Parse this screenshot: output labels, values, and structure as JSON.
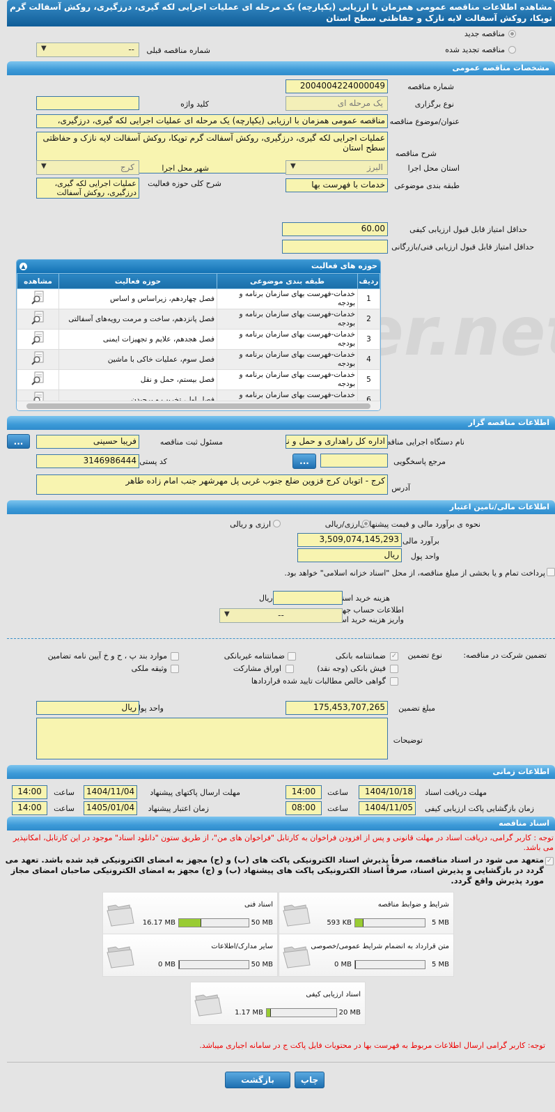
{
  "title": "مشاهده اطلاعات مناقصه عمومی همزمان با ارزیابی (یکپارچه) یک مرحله ای عملیات اجرایی لکه گیری، درزگیری، روکش آسفالت گرم توپکا، روکش آسفالت لایه نازک و حفاظتی سطح استان",
  "watermark": "AriaTender.net",
  "top": {
    "new_tender": "مناقصه جدید",
    "renewed_tender": "مناقصه تجدید شده",
    "prev_number_label": "شماره مناقصه قبلی",
    "prev_number_value": "--"
  },
  "general": {
    "header": "مشخصات مناقصه عمومی",
    "number_label": "شماره مناقصه",
    "number": "2004004224000049",
    "type_label": "نوع برگزاری",
    "type": "یک مرحله ای",
    "keyword_label": "کلید واژه",
    "keyword": "",
    "subject_label": "عنوان/موضوع مناقصه",
    "subject": "مناقصه عمومی همزمان با ارزیابی (یکپارچه) یک مرحله ای عملیات اجرایی لکه گیری، درزگیری،",
    "desc_label": "شرح مناقصه",
    "desc": "عملیات اجرایی لکه گیری، درزگیری، روکش آسفالت گرم توپکا، روکش آسفالت لایه نازک و حفاظتی سطح استان",
    "province_label": "استان محل اجرا",
    "province": "البرز",
    "city_label": "شهر محل اجرا",
    "city": "کرج",
    "category_label": "طبقه بندی موضوعی",
    "category": "خدمات با فهرست بها",
    "activity_label": "شرح کلی حوزه فعالیت",
    "activity": "عملیات اجرایی لکه گیری، درزگیری، روکش آسفالت",
    "min_quality_label": "حداقل امتیاز قابل قبول ارزیابی کیفی",
    "min_quality": "60.00",
    "min_tech_label": "حداقل امتیاز قابل قبول ارزیابی فنی/بازرگانی",
    "min_tech": ""
  },
  "activities": {
    "header": "حوزه های فعالیت",
    "columns": [
      "ردیف",
      "طبقه بندی موضوعی",
      "حوزه فعالیت",
      "مشاهده"
    ],
    "rows": [
      {
        "n": "1",
        "cat": "خدمات-فهرست بهای سازمان برنامه و بودجه",
        "field": "فصل چهاردهم، زیراساس و اساس"
      },
      {
        "n": "2",
        "cat": "خدمات-فهرست بهای سازمان برنامه و بودجه",
        "field": "فصل پانزدهم، ساخت و مرمت رویه‌های آسفالتی"
      },
      {
        "n": "3",
        "cat": "خدمات-فهرست بهای سازمان برنامه و بودجه",
        "field": "فصل هجدهم، علایم و تجهیزات ایمنی"
      },
      {
        "n": "4",
        "cat": "خدمات-فهرست بهای سازمان برنامه و بودجه",
        "field": "فصل سوم، عملیات خاکی با ماشین"
      },
      {
        "n": "5",
        "cat": "خدمات-فهرست بهای سازمان برنامه و بودجه",
        "field": "فصل بیستم، حمل و نقل"
      },
      {
        "n": "6",
        "cat": "خدمات-فهرست بهای سازمان برنامه و بودجه",
        "field": "فصل اول، تخریب و برچیدن"
      }
    ]
  },
  "organizer": {
    "header": "اطلاعات مناقصه گزار",
    "org_label": "نام دستگاه اجرایی مناقصه گزار",
    "org": "اداره کل راهداری و حمل و نق",
    "resp_label": "مسئول ثبت مناقصه",
    "resp": "فریبا حسینی",
    "more": "...",
    "ref_label": "مرجع پاسخگویی",
    "ref": "",
    "postal_label": "کد پستی",
    "postal": "3146986444",
    "address_label": "آدرس",
    "address": "کرج - اتوبان کرج قزوین ضلع جنوب غربی پل مهرشهر جنب امام زاده طاهر"
  },
  "finance": {
    "header": "اطلاعات مالی/تامین اعتبار",
    "method_label": "نحوه ی برآورد مالی و قیمت پیشنهادی",
    "opt1": "ارزی/ریالی",
    "opt2": "ارزی و ریالی",
    "estimate_label": "برآورد مالی",
    "estimate": "3,509,074,145,293",
    "currency_label": "واحد پول",
    "currency": "ریال",
    "treasury": "پرداخت تمام و یا بخشی از مبلغ مناقصه، از محل \"اسناد خزانه اسلامی\" خواهد بود.",
    "doc_cost_label": "هزینه خرید اسناد",
    "doc_cost": "",
    "doc_cost_unit": "ریال",
    "account_label": "اطلاعات حساب جهت واریز هزینه خرید اسناد",
    "account": "--"
  },
  "guarantee": {
    "label": "تضمین شرکت در مناقصه:",
    "type_label": "نوع تضمین",
    "options": [
      {
        "label": "ضمانتنامه بانکی",
        "checked": true
      },
      {
        "label": "ضمانتنامه غیربانکی",
        "checked": false
      },
      {
        "label": "موارد بند پ ، ح و خ آیین نامه تضامین",
        "checked": false
      },
      {
        "label": "فیش بانکی (وجه نقد)",
        "checked": false
      },
      {
        "label": "اوراق مشارکت",
        "checked": false
      },
      {
        "label": "وثیقه ملکی",
        "checked": false
      },
      {
        "label": "گواهی خالص مطالبات تایید شده قراردادها",
        "checked": false
      }
    ],
    "amount_label": "مبلغ تضمین",
    "amount": "175,453,707,265",
    "currency_label": "واحد پول",
    "currency": "ریال",
    "notes_label": "توضیحات",
    "notes": ""
  },
  "timing": {
    "header": "اطلاعات زمانی",
    "hour": "ساعت",
    "doc_deadline_label": "مهلت دریافت اسناد",
    "doc_deadline": "1404/10/18",
    "doc_deadline_time": "14:00",
    "submit_label": "مهلت ارسال پاکتهای پیشنهاد",
    "submit": "1404/11/04",
    "submit_time": "14:00",
    "open_label": "زمان بازگشایی پاکت ارزیابی کیفی",
    "open": "1404/11/05",
    "open_time": "08:00",
    "valid_label": "زمان اعتبار پیشنهاد",
    "valid": "1405/01/04",
    "valid_time": "14:00"
  },
  "documents": {
    "header": "اسناد مناقصه",
    "note": "توجه : کاربر گرامی، دریافت اسناد در مهلت قانونی و پس از افزودن فراخوان به کارتابل \"فراخوان های من\"، از طریق ستون \"دانلود اسناد\" موجود در این کارتابل، امکانپذیر می باشد.",
    "commit": "متعهد می شود در اسناد مناقصه، صرفاً پذیرش اسناد الکترونیکی پاکت های (ب) و (ج) مجهز به امضای الکترونیکی قید شده باشد. تعهد می گردد در بازگشایی و پذیرش اسناد، صرفاً اسناد الکترونیکی پاکت های پیشنهاد (ب) و (ج) مجهز به امضای الکترونیکی صاحبان امضای مجاز مورد پذیرش واقع گردد.",
    "files": [
      {
        "title": "شرایط و ضوابط مناقصه",
        "size": "593 KB",
        "max": "5 MB",
        "fill": 0.116
      },
      {
        "title": "اسناد فنی",
        "size": "16.17 MB",
        "max": "50 MB",
        "fill": 0.323
      },
      {
        "title": "متن قرارداد به انضمام شرایط عمومی/خصوصی",
        "size": "0 MB",
        "max": "5 MB",
        "fill": 0
      },
      {
        "title": "سایر مدارک/اطلاعات",
        "size": "0 MB",
        "max": "50 MB",
        "fill": 0
      },
      {
        "title": "اسناد ارزیابی کیفی",
        "size": "1.17 MB",
        "max": "20 MB",
        "fill": 0.0585
      }
    ],
    "price_note": "توجه: کاربر گرامی ارسال اطلاعات مربوط به فهرست بها در محتویات فایل پاکت ج در سامانه اجباری میباشد."
  },
  "actions": {
    "print": "چاپ",
    "back": "بازگشت"
  }
}
